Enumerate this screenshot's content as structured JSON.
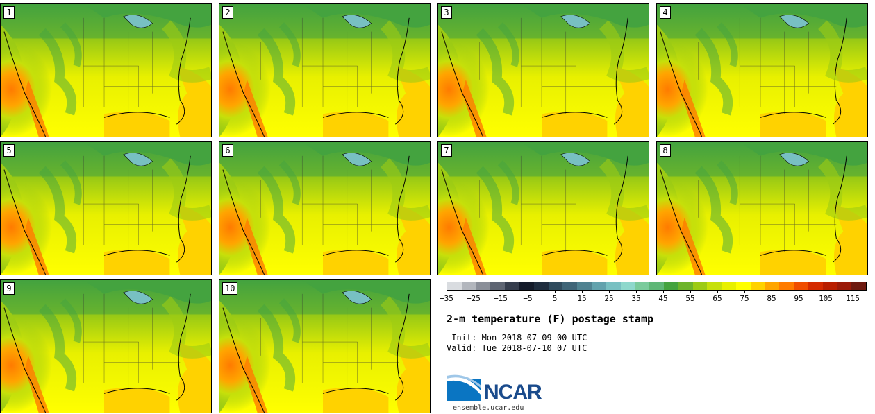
{
  "panels": [
    {
      "label": "1"
    },
    {
      "label": "2"
    },
    {
      "label": "3"
    },
    {
      "label": "4"
    },
    {
      "label": "5"
    },
    {
      "label": "6"
    },
    {
      "label": "7"
    },
    {
      "label": "8"
    },
    {
      "label": "9"
    },
    {
      "label": "10"
    }
  ],
  "colorbar": {
    "colors": [
      "#d9dce0",
      "#b2b6bd",
      "#8a8f99",
      "#5e6573",
      "#353d4d",
      "#141b2a",
      "#1f2d3e",
      "#2f4b5e",
      "#3f6578",
      "#4f8291",
      "#62a2ad",
      "#78c0c2",
      "#8ed8cc",
      "#7acb9c",
      "#5fb777",
      "#44a33f",
      "#6db42b",
      "#9ccb14",
      "#c6e00a",
      "#e8f000",
      "#ffff00",
      "#ffd200",
      "#ffa500",
      "#ff7b00",
      "#f04d00",
      "#d42a00",
      "#b81e00",
      "#9a1a08",
      "#6e1a10"
    ],
    "tick_labels": [
      "−35",
      "−25",
      "−15",
      "−5",
      "5",
      "15",
      "25",
      "35",
      "45",
      "55",
      "65",
      "75",
      "85",
      "95",
      "105",
      "115"
    ]
  },
  "title": "2-m temperature (F) postage stamp",
  "init_line": " Init: Mon 2018-07-09 00 UTC",
  "valid_line": "Valid: Tue 2018-07-10 07 UTC",
  "logo_text": "NCAR",
  "url": "ensemble.ucar.edu"
}
